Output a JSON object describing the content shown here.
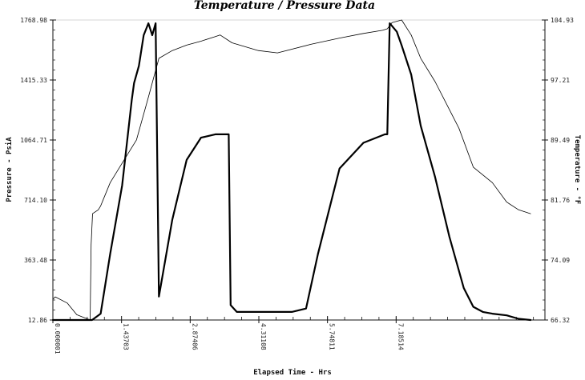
{
  "chart_data": {
    "type": "line",
    "title": "Temperature / Pressure Data",
    "xlabel": "Elapsed Time - Hrs",
    "ylabel": "Pressure - PsiA",
    "y2label": "Temperature - °F",
    "xlim": [
      0,
      10.3
    ],
    "ylim": [
      12.86,
      1768.98
    ],
    "y2lim": [
      66.32,
      104.93
    ],
    "x_ticks": [
      "0.000001",
      "1.43703",
      "2.87406",
      "4.31108",
      "5.74811",
      "7.18514"
    ],
    "x_tick_values": [
      0,
      1.43703,
      2.87406,
      4.31108,
      5.74811,
      7.18514
    ],
    "y_ticks": [
      "12.86",
      "363.48",
      "714.10",
      "1064.71",
      "1415.33",
      "1768.98"
    ],
    "y2_ticks": [
      "66.32",
      "74.09",
      "81.76",
      "89.49",
      "97.21",
      "104.93"
    ],
    "grid": false,
    "series": [
      {
        "axis": "left",
        "style": "thick",
        "x": [
          0.0,
          0.3,
          0.55,
          0.82,
          1.0,
          1.2,
          1.45,
          1.55,
          1.65,
          1.7,
          1.8,
          1.9,
          2.0,
          2.08,
          2.15,
          2.22,
          2.5,
          2.8,
          3.1,
          3.4,
          3.68,
          3.72,
          3.85,
          4.5,
          5.0,
          5.3,
          5.55,
          6.0,
          6.5,
          6.95,
          7.0,
          7.05,
          7.2,
          7.3,
          7.5,
          7.7,
          8.0,
          8.3,
          8.6,
          8.8,
          9.0,
          9.2,
          9.5,
          9.75,
          10.0
        ],
        "values": [
          0,
          0,
          0,
          0,
          50,
          400,
          800,
          1050,
          1300,
          1400,
          1500,
          1680,
          1750,
          1680,
          1750,
          150,
          600,
          950,
          1080,
          1100,
          1100,
          100,
          60,
          60,
          60,
          80,
          400,
          900,
          1050,
          1100,
          1100,
          1750,
          1700,
          1620,
          1450,
          1150,
          850,
          500,
          200,
          90,
          60,
          50,
          40,
          20,
          0
        ]
      },
      {
        "axis": "right",
        "style": "thin",
        "x": [
          0.0,
          0.05,
          0.3,
          0.5,
          0.78,
          0.8,
          0.83,
          0.95,
          1.0,
          1.2,
          1.5,
          1.75,
          2.0,
          2.22,
          2.5,
          2.8,
          3.1,
          3.4,
          3.5,
          3.75,
          4.3,
          4.7,
          5.4,
          6.0,
          6.5,
          6.9,
          7.0,
          7.1,
          7.3,
          7.5,
          7.7,
          8.0,
          8.5,
          8.8,
          9.2,
          9.5,
          9.75,
          10.0
        ],
        "values": [
          69.0,
          69.3,
          68.5,
          67.0,
          66.3,
          76.0,
          80.0,
          80.5,
          81.0,
          84.0,
          87.0,
          89.5,
          95.0,
          100.0,
          101.0,
          101.7,
          102.2,
          102.8,
          103.0,
          102.0,
          101.0,
          100.7,
          101.8,
          102.6,
          103.2,
          103.6,
          103.8,
          104.6,
          104.93,
          103.0,
          100.0,
          97.0,
          91.0,
          86.0,
          84.0,
          81.5,
          80.5,
          80.0
        ]
      }
    ]
  }
}
